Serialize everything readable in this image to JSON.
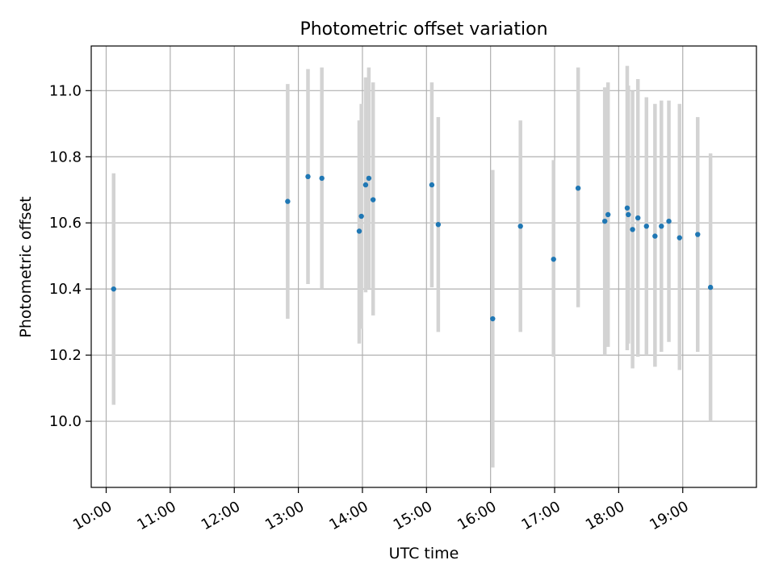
{
  "chart_data": {
    "type": "scatter",
    "title": "Photometric offset variation",
    "xlabel": "UTC time",
    "ylabel": "Photometric offset",
    "x_ticks": [
      "10:00",
      "11:00",
      "12:00",
      "13:00",
      "14:00",
      "15:00",
      "16:00",
      "17:00",
      "18:00",
      "19:00"
    ],
    "y_ticks": [
      "10.0",
      "10.2",
      "10.4",
      "10.6",
      "10.8",
      "11.0"
    ],
    "xlim": [
      "09:46",
      "20:09"
    ],
    "ylim": [
      9.8,
      11.135
    ],
    "grid": true,
    "colors": {
      "point": "#1f77b4",
      "errorbar": "#d3d3d3",
      "grid": "#b0b0b0"
    },
    "points": [
      {
        "t": "10:07",
        "y": 10.4,
        "lo": 10.05,
        "hi": 10.75
      },
      {
        "t": "12:50",
        "y": 10.665,
        "lo": 10.31,
        "hi": 11.02
      },
      {
        "t": "13:09",
        "y": 10.74,
        "lo": 10.415,
        "hi": 11.065
      },
      {
        "t": "13:22",
        "y": 10.735,
        "lo": 10.4,
        "hi": 11.07
      },
      {
        "t": "13:57",
        "y": 10.575,
        "lo": 10.235,
        "hi": 10.91
      },
      {
        "t": "13:59",
        "y": 10.62,
        "lo": 10.28,
        "hi": 10.96
      },
      {
        "t": "14:03",
        "y": 10.715,
        "lo": 10.39,
        "hi": 11.04
      },
      {
        "t": "14:06",
        "y": 10.735,
        "lo": 10.4,
        "hi": 11.07
      },
      {
        "t": "14:10",
        "y": 10.67,
        "lo": 10.32,
        "hi": 11.025
      },
      {
        "t": "15:05",
        "y": 10.715,
        "lo": 10.405,
        "hi": 11.025
      },
      {
        "t": "15:11",
        "y": 10.595,
        "lo": 10.27,
        "hi": 10.92
      },
      {
        "t": "16:02",
        "y": 10.31,
        "lo": 9.86,
        "hi": 10.76
      },
      {
        "t": "16:28",
        "y": 10.59,
        "lo": 10.27,
        "hi": 10.91
      },
      {
        "t": "16:59",
        "y": 10.49,
        "lo": 10.195,
        "hi": 10.79
      },
      {
        "t": "17:22",
        "y": 10.705,
        "lo": 10.345,
        "hi": 11.07
      },
      {
        "t": "17:47",
        "y": 10.605,
        "lo": 10.2,
        "hi": 11.01
      },
      {
        "t": "17:50",
        "y": 10.625,
        "lo": 10.225,
        "hi": 11.025
      },
      {
        "t": "18:08",
        "y": 10.645,
        "lo": 10.215,
        "hi": 11.075
      },
      {
        "t": "18:09",
        "y": 10.625,
        "lo": 10.235,
        "hi": 11.015
      },
      {
        "t": "18:13",
        "y": 10.58,
        "lo": 10.16,
        "hi": 11.0
      },
      {
        "t": "18:18",
        "y": 10.615,
        "lo": 10.195,
        "hi": 11.035
      },
      {
        "t": "18:26",
        "y": 10.59,
        "lo": 10.2,
        "hi": 10.98
      },
      {
        "t": "18:34",
        "y": 10.56,
        "lo": 10.165,
        "hi": 10.96
      },
      {
        "t": "18:40",
        "y": 10.59,
        "lo": 10.21,
        "hi": 10.97
      },
      {
        "t": "18:47",
        "y": 10.605,
        "lo": 10.24,
        "hi": 10.97
      },
      {
        "t": "18:57",
        "y": 10.555,
        "lo": 10.155,
        "hi": 10.96
      },
      {
        "t": "19:14",
        "y": 10.565,
        "lo": 10.21,
        "hi": 10.92
      },
      {
        "t": "19:26",
        "y": 10.405,
        "lo": 10.0,
        "hi": 10.81
      }
    ]
  }
}
